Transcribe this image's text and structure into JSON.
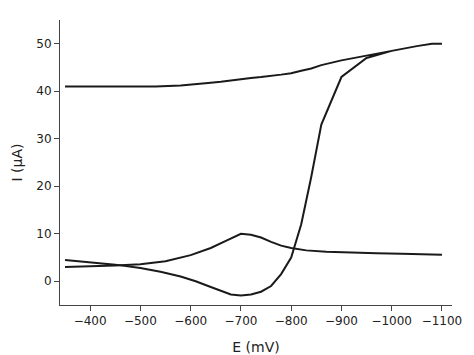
{
  "chart_data": {
    "type": "line",
    "xlabel": "E (mV)",
    "ylabel": "I (μA)",
    "xlim": [
      -340,
      -1120
    ],
    "ylim": [
      -5,
      55
    ],
    "xticks": [
      -400,
      -500,
      -600,
      -700,
      -800,
      -900,
      -1000,
      -1100
    ],
    "yticks": [
      0,
      10,
      20,
      30,
      40,
      50
    ],
    "grid": false,
    "series": [
      {
        "color": "#1a1a1a",
        "x": [
          -350,
          -400,
          -450,
          -500,
          -540,
          -580,
          -610,
          -640,
          -660,
          -680,
          -700,
          -720,
          -740,
          -760,
          -780,
          -800,
          -820,
          -840,
          -860,
          -900,
          -950,
          -1000,
          -1050,
          -1080,
          -1095,
          -1100,
          -1095,
          -1080,
          -1050,
          -1000,
          -950,
          -900,
          -860,
          -840,
          -820,
          -800,
          -780,
          -760,
          -740,
          -720,
          -700,
          -680,
          -660,
          -640,
          -610,
          -580,
          -530,
          -480,
          -430,
          -380,
          -350
        ],
        "values": [
          4.5,
          4.0,
          3.5,
          2.8,
          2.0,
          1.0,
          0.0,
          -1.2,
          -2.0,
          -2.8,
          -3.0,
          -2.8,
          -2.2,
          -1.0,
          1.5,
          5.0,
          12.0,
          22.0,
          33.0,
          43.0,
          47.0,
          48.5,
          49.5,
          50.0,
          50.0,
          50.0,
          50.0,
          50.0,
          49.5,
          48.5,
          47.5,
          46.5,
          45.5,
          44.8,
          44.3,
          43.8,
          43.5,
          43.2,
          43.0,
          42.8,
          42.5,
          42.2,
          42.0,
          41.8,
          41.5,
          41.2,
          41.0,
          41.0,
          41.0,
          41.0,
          41.0
        ]
      },
      {
        "color": "#1a1a1a",
        "x": [
          -350,
          -400,
          -450,
          -500,
          -550,
          -600,
          -640,
          -670,
          -700,
          -720,
          -740,
          -760,
          -780,
          -800,
          -830,
          -870,
          -920,
          -970,
          -1020,
          -1070,
          -1100
        ],
        "values": [
          3.0,
          3.1,
          3.3,
          3.6,
          4.2,
          5.5,
          7.0,
          8.5,
          10.0,
          9.8,
          9.2,
          8.3,
          7.5,
          7.0,
          6.5,
          6.2,
          6.0,
          5.9,
          5.8,
          5.7,
          5.6
        ]
      }
    ]
  }
}
